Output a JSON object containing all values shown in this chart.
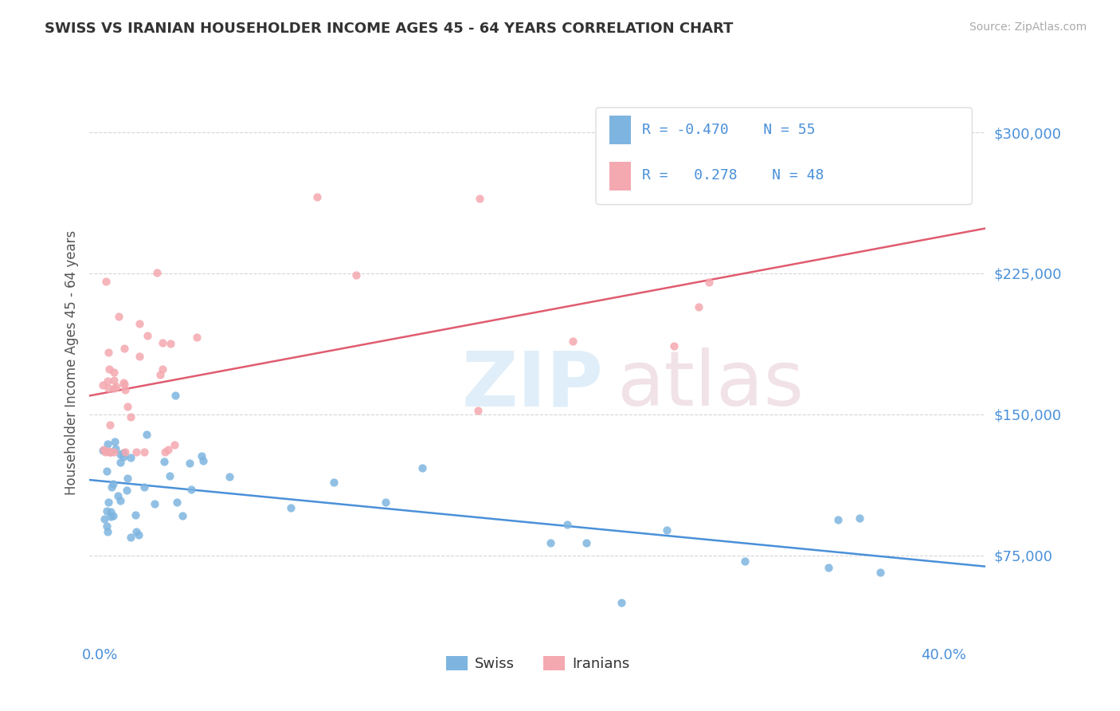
{
  "title": "SWISS VS IRANIAN HOUSEHOLDER INCOME AGES 45 - 64 YEARS CORRELATION CHART",
  "source": "Source: ZipAtlas.com",
  "xlabel_start": "0.0%",
  "xlabel_end": "40.0%",
  "ylabel_label": "Householder Income Ages 45 - 64 years",
  "ytick_labels": [
    "$75,000",
    "$150,000",
    "$225,000",
    "$300,000"
  ],
  "ytick_values": [
    75000,
    150000,
    225000,
    300000
  ],
  "ylim_low": 30000,
  "ylim_high": 325000,
  "xlim_low": -0.005,
  "xlim_high": 0.42,
  "legend_r_swiss": "-0.470",
  "legend_n_swiss": "55",
  "legend_r_iran": "0.278",
  "legend_n_iran": "48",
  "swiss_color": "#7eb5e0",
  "swiss_line_color": "#4a90d9",
  "iran_color": "#f4a8b0",
  "iran_line_color": "#e05c70",
  "bg_color": "#ffffff",
  "grid_color": "#cccccc",
  "title_color": "#333333",
  "axis_label_color": "#4a90d9",
  "watermark_zip_color": "#cce4f5",
  "watermark_atlas_color": "#e8d0d8",
  "legend_swiss_label": "Swiss",
  "legend_iran_label": "Iranians"
}
